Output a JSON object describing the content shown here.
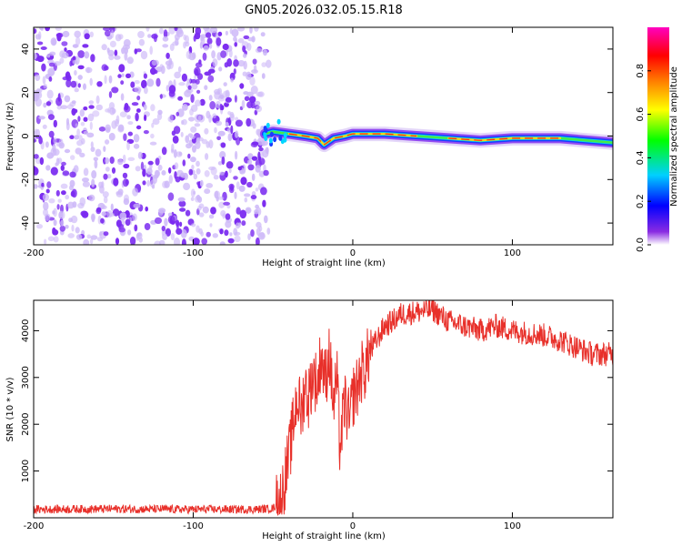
{
  "title": "GN05.2026.032.05.15.R18",
  "colors": {
    "background": "#ffffff",
    "axis": "#000000",
    "snr_line": "#e8302a",
    "noise_violet": "#7a2af0",
    "noise_light": "#cdb8f8"
  },
  "chart_data": [
    {
      "type": "heatmap",
      "name": "spectrogram",
      "xlabel": "Height of straight line (km)",
      "ylabel": "Frequency (Hz)",
      "xlim": [
        -200,
        163
      ],
      "ylim": [
        -50,
        50
      ],
      "x_ticks": [
        -200,
        -100,
        0,
        100
      ],
      "x_tick_labels": [
        "-200",
        "-100",
        "0",
        "100"
      ],
      "y_ticks": [
        -40,
        -20,
        0,
        20,
        40
      ],
      "y_tick_labels": [
        "-40",
        "-20",
        "0",
        "20",
        "40"
      ],
      "noise_region_x": [
        -200,
        -55
      ],
      "signal_start_x": -55,
      "ridge_points": [
        {
          "x": -55,
          "y": 1
        },
        {
          "x": -50,
          "y": 2
        },
        {
          "x": -40,
          "y": 1
        },
        {
          "x": -30,
          "y": 0
        },
        {
          "x": -22,
          "y": -1
        },
        {
          "x": -18,
          "y": -4
        },
        {
          "x": -12,
          "y": -1
        },
        {
          "x": -5,
          "y": 0
        },
        {
          "x": 0,
          "y": 1
        },
        {
          "x": 20,
          "y": 1
        },
        {
          "x": 40,
          "y": 0
        },
        {
          "x": 60,
          "y": -1
        },
        {
          "x": 80,
          "y": -2
        },
        {
          "x": 100,
          "y": -1
        },
        {
          "x": 130,
          "y": -1
        },
        {
          "x": 163,
          "y": -3
        }
      ],
      "colorbar": {
        "label": "Normalized spectral amplitude",
        "range": [
          0,
          1
        ],
        "ticks": [
          0,
          0.2,
          0.4,
          0.6,
          0.8
        ],
        "tick_labels": [
          "0.0",
          "0.2",
          "0.4",
          "0.6",
          "0.8"
        ],
        "stops": [
          "#ffffff",
          "#8a2be2",
          "#0000ff",
          "#00d0ff",
          "#00ff00",
          "#ffff00",
          "#ff8000",
          "#ff0000",
          "#ff00c0"
        ]
      }
    },
    {
      "type": "line",
      "name": "snr",
      "xlabel": "Height of straight line (km)",
      "ylabel": "SNR (10 * v/v)",
      "xlim": [
        -200,
        163
      ],
      "ylim": [
        0,
        4650
      ],
      "x_ticks": [
        -200,
        -100,
        0,
        100
      ],
      "x_tick_labels": [
        "-200",
        "-100",
        "0",
        "100"
      ],
      "y_ticks": [
        1000,
        2000,
        3000,
        4000
      ],
      "y_tick_labels": [
        "1000",
        "2000",
        "3000",
        "4000"
      ],
      "series": [
        {
          "name": "SNR",
          "x": [
            -200,
            -150,
            -100,
            -60,
            -50,
            -45,
            -40,
            -38,
            -35,
            -32,
            -30,
            -28,
            -25,
            -22,
            -20,
            -17,
            -15,
            -12,
            -10,
            -8,
            -5,
            -2,
            0,
            3,
            5,
            8,
            10,
            15,
            20,
            25,
            30,
            40,
            50,
            60,
            70,
            80,
            90,
            100,
            110,
            120,
            130,
            140,
            150,
            163
          ],
          "y": [
            180,
            190,
            180,
            180,
            200,
            400,
            1300,
            1800,
            2600,
            2200,
            2900,
            2500,
            3100,
            2800,
            3500,
            2900,
            3600,
            2400,
            3000,
            1500,
            2500,
            2000,
            2600,
            2800,
            3100,
            3200,
            3500,
            3800,
            4100,
            4200,
            4350,
            4400,
            4450,
            4200,
            4100,
            4000,
            4100,
            4000,
            3950,
            3900,
            3800,
            3650,
            3500,
            3500
          ]
        }
      ]
    }
  ]
}
